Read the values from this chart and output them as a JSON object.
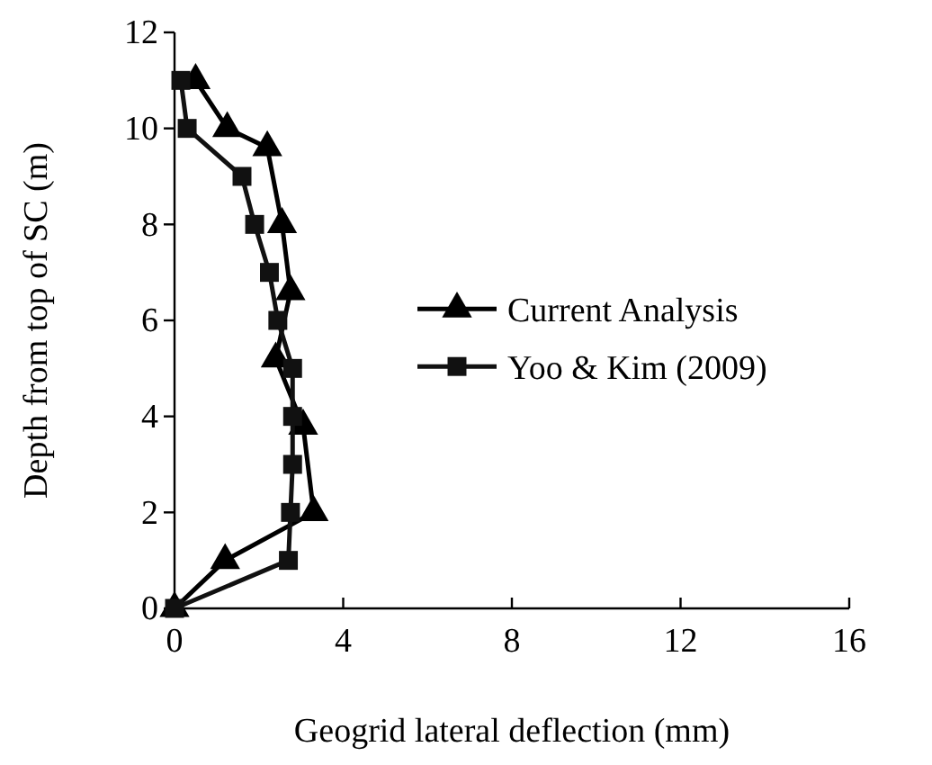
{
  "chart_data": {
    "type": "line",
    "xlabel": "Geogrid lateral deflection (mm)",
    "ylabel": "Depth from top of SC (m)",
    "xlim": [
      0,
      16
    ],
    "xticks": [
      0,
      4,
      8,
      12,
      16
    ],
    "ylim": [
      0,
      12
    ],
    "yticks": [
      0,
      2,
      4,
      6,
      8,
      10,
      12
    ],
    "grid": false,
    "legend": "right",
    "series": [
      {
        "name": "Current Analysis",
        "color": "#000000",
        "marker": "triangle",
        "x": [
          0,
          1.2,
          3.3,
          3.05,
          2.4,
          2.75,
          2.55,
          2.2,
          1.25,
          0.5
        ],
        "values": [
          0,
          1,
          2,
          3.8,
          5.2,
          6.6,
          8,
          9.6,
          10,
          11
        ]
      },
      {
        "name": "Yoo & Kim (2009)",
        "color": "#111111",
        "marker": "square",
        "x": [
          0,
          2.7,
          2.75,
          2.8,
          2.8,
          2.8,
          2.45,
          2.25,
          1.9,
          1.6,
          0.3,
          0.15
        ],
        "values": [
          0,
          1,
          2,
          3,
          4,
          5,
          6,
          7,
          8,
          9,
          10,
          11
        ]
      }
    ]
  }
}
